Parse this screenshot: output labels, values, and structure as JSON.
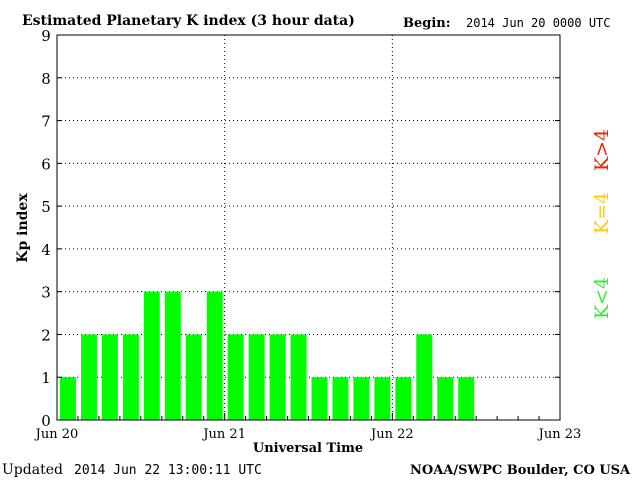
{
  "chart_data": {
    "type": "bar",
    "title": "Estimated Planetary K index (3 hour data)",
    "begin_label": "Begin:",
    "begin_value": "2014 Jun 20 0000 UTC",
    "ylabel": "Kp index",
    "xlabel": "Universal Time",
    "ylim": [
      0,
      9
    ],
    "yticks": [
      "0",
      "1",
      "2",
      "3",
      "4",
      "5",
      "6",
      "7",
      "8",
      "9"
    ],
    "xticks": [
      "Jun 20",
      "Jun 21",
      "Jun 22",
      "Jun 23"
    ],
    "grid": true,
    "bar_color": "#00ff00",
    "interval_hours": 3,
    "values": [
      1,
      2,
      2,
      2,
      3,
      3,
      2,
      3,
      2,
      2,
      2,
      2,
      1,
      1,
      1,
      1,
      1,
      2,
      1,
      1
    ],
    "legend": [
      {
        "label": "K<4",
        "color": "#33ee33"
      },
      {
        "label": "K=4",
        "color": "#f5cf00"
      },
      {
        "label": "K>4",
        "color": "#ee2200"
      }
    ],
    "updated_label": "Updated",
    "updated_value": "2014 Jun 22 13:00:11 UTC",
    "source": "NOAA/SWPC Boulder, CO USA"
  }
}
